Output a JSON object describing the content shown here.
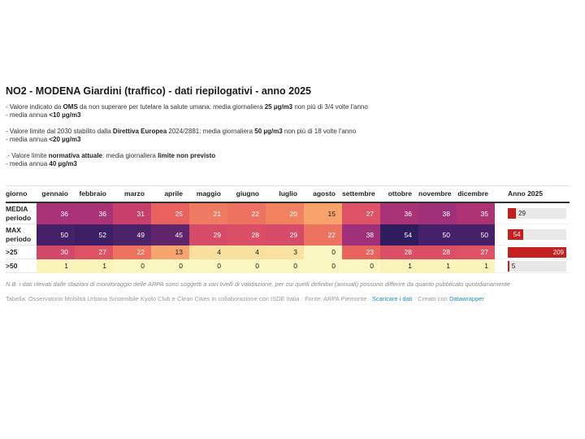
{
  "title": "NO2 - MODENA Giardini (traffico) - dati riepilogativi - anno 2025",
  "notes": {
    "groups": [
      [
        [
          {
            "t": "- Valore indicato da "
          },
          {
            "t": "OMS",
            "b": true
          },
          {
            "t": " da non superare per tutelare la salute umana: media giornaliera "
          },
          {
            "t": "25 µg/m3",
            "b": true
          },
          {
            "t": " non più di 3/4 volte l'anno"
          }
        ],
        [
          {
            "t": "- media annua "
          },
          {
            "t": "<10 µg/m3",
            "b": true
          }
        ]
      ],
      [
        [
          {
            "t": "- Valore limite dal 2030 stabilito dalla "
          },
          {
            "t": "Direttiva Europea",
            "b": true
          },
          {
            "t": " 2024/2881: media giornaliera "
          },
          {
            "t": "50 µg/m3",
            "b": true
          },
          {
            "t": " non più di 18 volte l'anno"
          }
        ],
        [
          {
            "t": "- media annua "
          },
          {
            "t": "<20 µg/m3",
            "b": true
          }
        ]
      ],
      [
        [
          {
            "t": ".- Valore limite "
          },
          {
            "t": "normativa attuale",
            "b": true
          },
          {
            "t": ": media giornaliera "
          },
          {
            "t": "limite non previsto",
            "b": true
          }
        ],
        [
          {
            "t": "- media annua "
          },
          {
            "t": "40 µg/m3",
            "b": true
          }
        ]
      ]
    ]
  },
  "table": {
    "headers": [
      "giorno",
      "gennaio",
      "febbraio",
      "marzo",
      "aprile",
      "maggio",
      "giugno",
      "luglio",
      "agosto",
      "settembre",
      "ottobre",
      "novembre",
      "dicembre",
      "Anno 2025"
    ],
    "rows": [
      {
        "label": "MEDIA periodo",
        "tall": true,
        "cells": [
          {
            "v": "36",
            "bg": "#a93376",
            "fg": "#ffffff"
          },
          {
            "v": "36",
            "bg": "#a93376",
            "fg": "#ffffff"
          },
          {
            "v": "31",
            "bg": "#c7406c",
            "fg": "#ffffff"
          },
          {
            "v": "25",
            "bg": "#e7615e",
            "fg": "#ffffff"
          },
          {
            "v": "21",
            "bg": "#ef7a62",
            "fg": "#ffffff"
          },
          {
            "v": "22",
            "bg": "#ed7260",
            "fg": "#ffffff"
          },
          {
            "v": "20",
            "bg": "#f18260",
            "fg": "#ffffff"
          },
          {
            "v": "15",
            "bg": "#f9a26c",
            "fg": "#1a1a1a"
          },
          {
            "v": "27",
            "bg": "#dd5264",
            "fg": "#ffffff"
          },
          {
            "v": "36",
            "bg": "#a93376",
            "fg": "#ffffff"
          },
          {
            "v": "38",
            "bg": "#9f3079",
            "fg": "#ffffff"
          },
          {
            "v": "35",
            "bg": "#ae3374",
            "fg": "#ffffff"
          }
        ],
        "anno": {
          "value": "29",
          "pct": 13.9,
          "inside": false
        }
      },
      {
        "label": "MAX periodo",
        "tall": true,
        "cells": [
          {
            "v": "50",
            "bg": "#46216a",
            "fg": "#ffffff"
          },
          {
            "v": "52",
            "bg": "#3e1f66",
            "fg": "#ffffff"
          },
          {
            "v": "49",
            "bg": "#4c2268",
            "fg": "#ffffff"
          },
          {
            "v": "45",
            "bg": "#5f2469",
            "fg": "#ffffff"
          },
          {
            "v": "29",
            "bg": "#d64b68",
            "fg": "#ffffff"
          },
          {
            "v": "28",
            "bg": "#da4e66",
            "fg": "#ffffff"
          },
          {
            "v": "29",
            "bg": "#d64b68",
            "fg": "#ffffff"
          },
          {
            "v": "22",
            "bg": "#ed7260",
            "fg": "#ffffff"
          },
          {
            "v": "38",
            "bg": "#9f3079",
            "fg": "#ffffff"
          },
          {
            "v": "54",
            "bg": "#2e1c5c",
            "fg": "#ffffff"
          },
          {
            "v": "50",
            "bg": "#46216a",
            "fg": "#ffffff"
          },
          {
            "v": "50",
            "bg": "#46216a",
            "fg": "#ffffff"
          }
        ],
        "anno": {
          "value": "54",
          "pct": 25.8,
          "inside": true
        }
      },
      {
        "label": ">25",
        "tall": false,
        "cells": [
          {
            "v": "30",
            "bg": "#d24868",
            "fg": "#ffffff"
          },
          {
            "v": "27",
            "bg": "#dd5264",
            "fg": "#ffffff"
          },
          {
            "v": "22",
            "bg": "#ed7260",
            "fg": "#ffffff"
          },
          {
            "v": "13",
            "bg": "#f6a56e",
            "fg": "#1a1a1a"
          },
          {
            "v": "4",
            "bg": "#fae09f",
            "fg": "#1a1a1a"
          },
          {
            "v": "4",
            "bg": "#fae09f",
            "fg": "#1a1a1a"
          },
          {
            "v": "3",
            "bg": "#fae3a1",
            "fg": "#1a1a1a"
          },
          {
            "v": "0",
            "bg": "#fbf7c3",
            "fg": "#1a1a1a"
          },
          {
            "v": "23",
            "bg": "#e8655d",
            "fg": "#ffffff"
          },
          {
            "v": "28",
            "bg": "#da4e66",
            "fg": "#ffffff"
          },
          {
            "v": "28",
            "bg": "#da4e66",
            "fg": "#ffffff"
          },
          {
            "v": "27",
            "bg": "#dd5264",
            "fg": "#ffffff"
          }
        ],
        "anno": {
          "value": "209",
          "pct": 100,
          "inside": true
        }
      },
      {
        "label": ">50",
        "tall": false,
        "cells": [
          {
            "v": "1",
            "bg": "#faf3ba",
            "fg": "#1a1a1a"
          },
          {
            "v": "1",
            "bg": "#faf3ba",
            "fg": "#1a1a1a"
          },
          {
            "v": "0",
            "bg": "#fbf7c3",
            "fg": "#1a1a1a"
          },
          {
            "v": "0",
            "bg": "#fbf7c3",
            "fg": "#1a1a1a"
          },
          {
            "v": "0",
            "bg": "#fbf7c3",
            "fg": "#1a1a1a"
          },
          {
            "v": "0",
            "bg": "#fbf7c3",
            "fg": "#1a1a1a"
          },
          {
            "v": "0",
            "bg": "#fbf7c3",
            "fg": "#1a1a1a"
          },
          {
            "v": "0",
            "bg": "#fbf7c3",
            "fg": "#1a1a1a"
          },
          {
            "v": "0",
            "bg": "#fbf7c3",
            "fg": "#1a1a1a"
          },
          {
            "v": "1",
            "bg": "#faf3ba",
            "fg": "#1a1a1a"
          },
          {
            "v": "1",
            "bg": "#faf3ba",
            "fg": "#1a1a1a"
          },
          {
            "v": "1",
            "bg": "#faf3ba",
            "fg": "#1a1a1a"
          }
        ],
        "anno": {
          "value": "5",
          "pct": 2.4,
          "inside": false
        }
      }
    ]
  },
  "footnote": "N.B. i dati rilevati dalle stazioni di monitoraggio delle ARPA sono soggetti a vari livelli di validazione, per cui quelli definitivi (annuali) possono differire da quanto pubblicato quotidianamente",
  "attribution": {
    "segments": [
      {
        "t": "Tabella: Osservatorio Mobilità Urbana Sostenibile Kyoto Club e Clean Cities in collaborazione con ISDE Italia · Fonte: ARPA Piemonte · "
      },
      {
        "t": "Scaricare i dati",
        "link": true,
        "name": "download-data-link"
      },
      {
        "t": " · Creato con "
      },
      {
        "t": "Datawrapper",
        "link": true,
        "name": "datawrapper-link"
      }
    ]
  },
  "colors": {
    "bar_fill": "#c4201f",
    "bar_track": "#e8e8e8",
    "link": "#2589bd",
    "header_border": "#333333"
  },
  "chart_data": {
    "type": "table",
    "title": "NO2 - MODENA Giardini (traffico) - dati riepilogativi - anno 2025",
    "categories": [
      "gennaio",
      "febbraio",
      "marzo",
      "aprile",
      "maggio",
      "giugno",
      "luglio",
      "agosto",
      "settembre",
      "ottobre",
      "novembre",
      "dicembre"
    ],
    "series": [
      {
        "name": "MEDIA periodo",
        "values": [
          36,
          36,
          31,
          25,
          21,
          22,
          20,
          15,
          27,
          36,
          38,
          35
        ],
        "anno_2025": 29
      },
      {
        "name": "MAX periodo",
        "values": [
          50,
          52,
          49,
          45,
          29,
          28,
          29,
          22,
          38,
          54,
          50,
          50
        ],
        "anno_2025": 54
      },
      {
        "name": ">25",
        "values": [
          30,
          27,
          22,
          13,
          4,
          4,
          3,
          0,
          23,
          28,
          28,
          27
        ],
        "anno_2025": 209
      },
      {
        "name": ">50",
        "values": [
          1,
          1,
          0,
          0,
          0,
          0,
          0,
          0,
          0,
          1,
          1,
          1
        ],
        "anno_2025": 5
      }
    ],
    "heatmap": true,
    "legend_position": "none",
    "bar_column_label": "Anno 2025",
    "bar_scale_max": 209
  }
}
